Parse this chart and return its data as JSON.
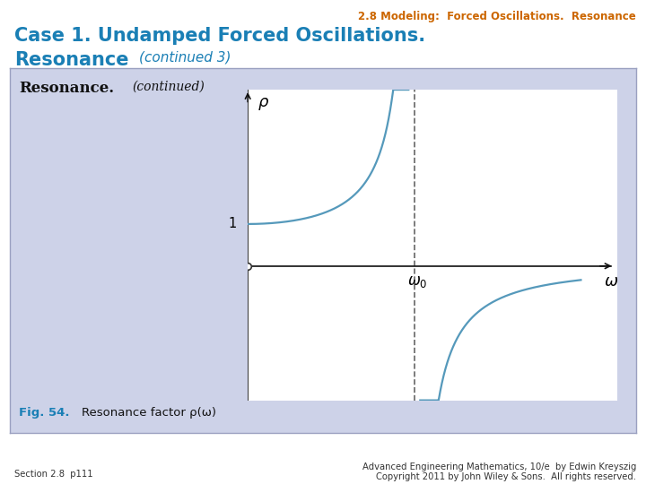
{
  "title_top": "2.8 Modeling:  Forced Oscillations.  Resonance",
  "title_top_color": "#cc6600",
  "main_title_line1": "Case 1. Undamped Forced Oscillations.",
  "main_title_line2": "Resonance",
  "main_title_italic": "(continued 3)",
  "main_title_color": "#1a7fb5",
  "panel_bg": "#cdd2e8",
  "panel_border": "#9aa0c0",
  "plot_bg": "#ffffff",
  "curve_color": "#5599bb",
  "curve_linewidth": 1.6,
  "dashed_color": "#666666",
  "axis_color": "#111111",
  "fig_label_color": "#1a7fb5",
  "footer_left": "Section 2.8  p111",
  "footer_right_line1": "Advanced Engineering Mathematics, 10/e  by Edwin Kreyszig",
  "footer_right_line2": "Copyright 2011 by John Wiley & Sons.  All rights reserved.",
  "omega0": 1.0,
  "background_color": "#ffffff",
  "x_min": 0.0,
  "x_max": 2.0,
  "y_min": -3.2,
  "y_max": 4.2,
  "eps": 0.035
}
